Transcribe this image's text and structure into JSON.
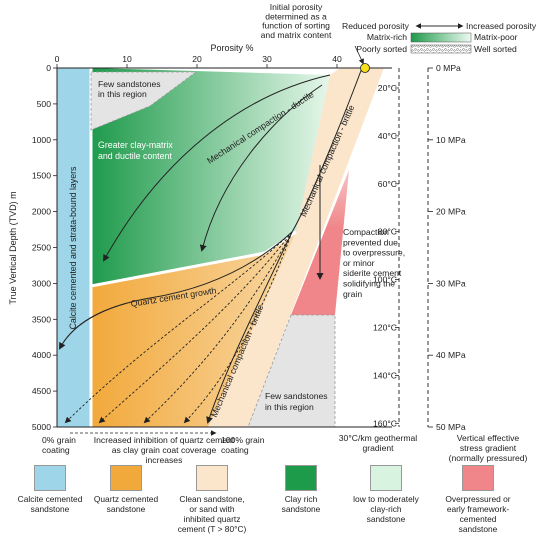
{
  "top": {
    "initial_porosity": [
      "Initial porosity",
      "determined as a",
      "function of sorting",
      "and matrix content"
    ],
    "reduced_porosity": "Reduced porosity",
    "increased_porosity": "Increased porosity",
    "matrix_rich": "Matrix-rich",
    "matrix_poor": "Matrix-poor",
    "poorly_sorted": "Poorly sorted",
    "well_sorted": "Well sorted"
  },
  "axes": {
    "x_label": "Porosity %",
    "x_ticks": [
      "0",
      "10",
      "20",
      "30",
      "40"
    ],
    "y_label": "True Vertical Depth (TVD) m",
    "y_ticks": [
      "0",
      "500",
      "1000",
      "1500",
      "2000",
      "2500",
      "3000",
      "3500",
      "4000",
      "4500",
      "5000"
    ],
    "temperature_ticks": [
      "20°C",
      "40°C",
      "60°C",
      "80°C",
      "100°C",
      "120°C",
      "140°C",
      "160°C"
    ],
    "pressure_ticks": [
      "0 MPa",
      "10 MPa",
      "20 MPa",
      "30 MPa",
      "40 MPa",
      "50 MPa"
    ]
  },
  "labels": {
    "calcite": "Calcite cemented and strata-bound layers",
    "few_sandstones_top": [
      "Few sandstones",
      "in this region"
    ],
    "few_sandstones_bottom": [
      "Few sandstones",
      "in this region"
    ],
    "clay_matrix": [
      "Greater clay-matrix",
      "and ductile content"
    ],
    "mech_ductile": "Mechanical compaction - ductile",
    "mech_brittle_upper": "Mechanical compaction - brittle",
    "mech_brittle_lower": "Mechanical compaction - brittle",
    "quartz_growth": "Quartz cement growth",
    "compaction_prevented": [
      "Compaction",
      "prevented due",
      "to overpressure,",
      "or minor",
      "siderite cement",
      "solidifying the",
      "grain"
    ]
  },
  "bottom": {
    "zero_coat": [
      "0% grain",
      "coating"
    ],
    "increased_inhibition": [
      "Increased inhibition of quartz cement",
      "as clay grain coat coverage",
      "increases"
    ],
    "hundred_coat": [
      "100% grain",
      "coating"
    ],
    "geothermal": [
      "30°C/km geothermal",
      "gradient"
    ],
    "stress": [
      "Vertical effective",
      "stress gradient",
      "(normally pressured)"
    ]
  },
  "legend": [
    {
      "label": "Calcite cemented sandstone",
      "color": "#9fd5e8",
      "lines": [
        "Calcite cemented",
        "sandstone"
      ]
    },
    {
      "label": "Quartz cemented sandstone",
      "color": "#f2a93b",
      "lines": [
        "Quartz cemented",
        "sandstone"
      ]
    },
    {
      "label": "Clean sandstone, or sand with inhibited quartz cement (T > 80°C)",
      "color": "#fbe6cc",
      "lines": [
        "Clean sandstone,",
        "or sand with",
        "inhibited quartz",
        "cement (T > 80°C)"
      ]
    },
    {
      "label": "Clay rich sandstone",
      "color": "#1e9a4b",
      "lines": [
        "Clay rich",
        "sandstone"
      ]
    },
    {
      "label": "low to moderately clay-rich sandstone",
      "color": "#d8f3df",
      "lines": [
        "low to moderately",
        "clay-rich",
        "sandstone"
      ]
    },
    {
      "label": "Overpressured or early framework-cemented sandstone",
      "color": "#f0868a",
      "lines": [
        "Overpressured or",
        "early framework-",
        "cemented",
        "sandstone"
      ]
    }
  ],
  "colors": {
    "calcite": "#9fd5e8",
    "quartz": "#f2a93b",
    "clean": "#fbe6cc",
    "clay_rich": "#1e9a4b",
    "clay_low": "#d8f3df",
    "overpressured": "#f0868a",
    "grey_region": "#e4e4e4",
    "initial_point": "#f7e01a"
  }
}
